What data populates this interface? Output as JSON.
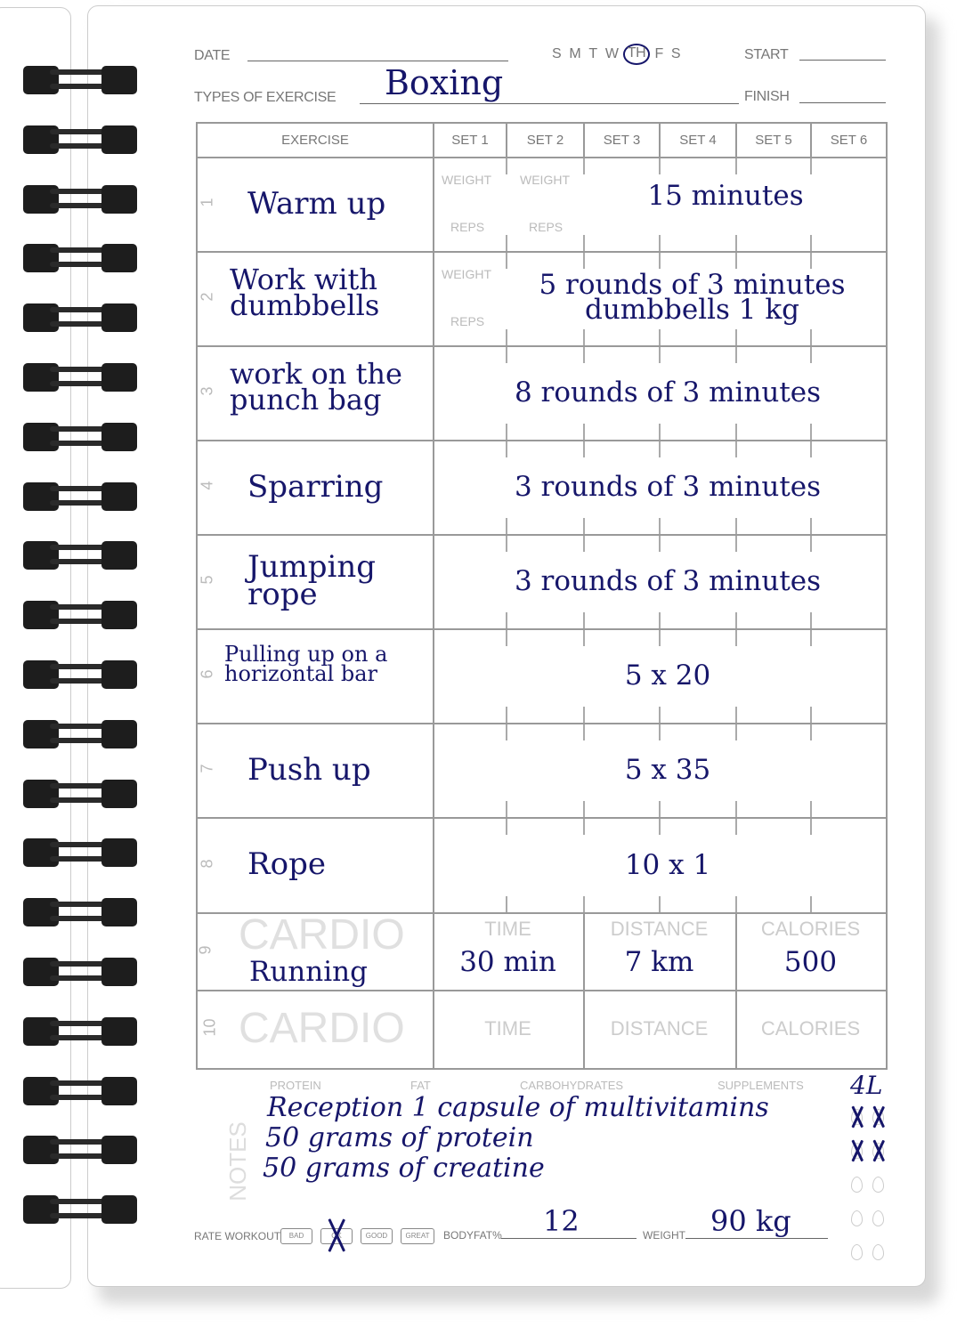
{
  "header": {
    "date_label": "DATE",
    "days": [
      "S",
      "M",
      "T",
      "W",
      "TH",
      "F",
      "S"
    ],
    "selected_day": "TH",
    "start_label": "START",
    "types_label": "TYPES OF EXERCISE",
    "types_value": "Boxing",
    "finish_label": "FINISH"
  },
  "table": {
    "headers": [
      "EXERCISE",
      "SET 1",
      "SET 2",
      "SET 3",
      "SET 4",
      "SET 5",
      "SET 6"
    ],
    "weight_label": "WEIGHT",
    "reps_label": "REPS",
    "rows": [
      {
        "num": "1",
        "exercise": "Warm up",
        "sets": "15 minutes"
      },
      {
        "num": "2",
        "exercise": "Work with dumbbells",
        "sets": "5 rounds of 3 minutes dumbbells 1 kg"
      },
      {
        "num": "3",
        "exercise": "work on the punch bag",
        "sets": "8 rounds of 3 minutes"
      },
      {
        "num": "4",
        "exercise": "Sparring",
        "sets": "3 rounds of 3 minutes"
      },
      {
        "num": "5",
        "exercise": "Jumping rope",
        "sets": "3 rounds of 3 minutes"
      },
      {
        "num": "6",
        "exercise": "Pulling up on a horizontal bar",
        "sets": "5 x 20"
      },
      {
        "num": "7",
        "exercise": "Push up",
        "sets": "5 x 35"
      },
      {
        "num": "8",
        "exercise": "Rope",
        "sets": "10 x 1"
      }
    ],
    "cardio": [
      {
        "num": "9",
        "label": "CARDIO",
        "exercise": "Running",
        "time_label": "TIME",
        "time": "30 min",
        "distance_label": "DISTANCE",
        "distance": "7 km",
        "calories_label": "CALORIES",
        "calories": "500"
      },
      {
        "num": "10",
        "label": "CARDIO",
        "time_label": "TIME",
        "distance_label": "DISTANCE",
        "calories_label": "CALORIES"
      }
    ]
  },
  "notes": {
    "label": "NOTES",
    "columns": [
      "PROTEIN",
      "FAT",
      "CARBOHYDRATES",
      "SUPPLEMENTS"
    ],
    "lines": [
      "Reception 1 capsule of multivitamins",
      "50 grams of protein",
      "50 grams of creatine"
    ],
    "water": "4L",
    "water_crossed": 4,
    "water_total": 10
  },
  "footer": {
    "rate_label": "RATE WORKOUT",
    "ratings": [
      "BAD",
      "OK",
      "GOOD",
      "GREAT"
    ],
    "selected_rating": "OK",
    "bodyfat_label": "BODYFAT%",
    "bodyfat_value": "12",
    "weight_label": "WEIGHT",
    "weight_value": "90 kg"
  },
  "colors": {
    "ink": "#16166a",
    "grid": "#999999",
    "ring": "#1d1d1d"
  }
}
